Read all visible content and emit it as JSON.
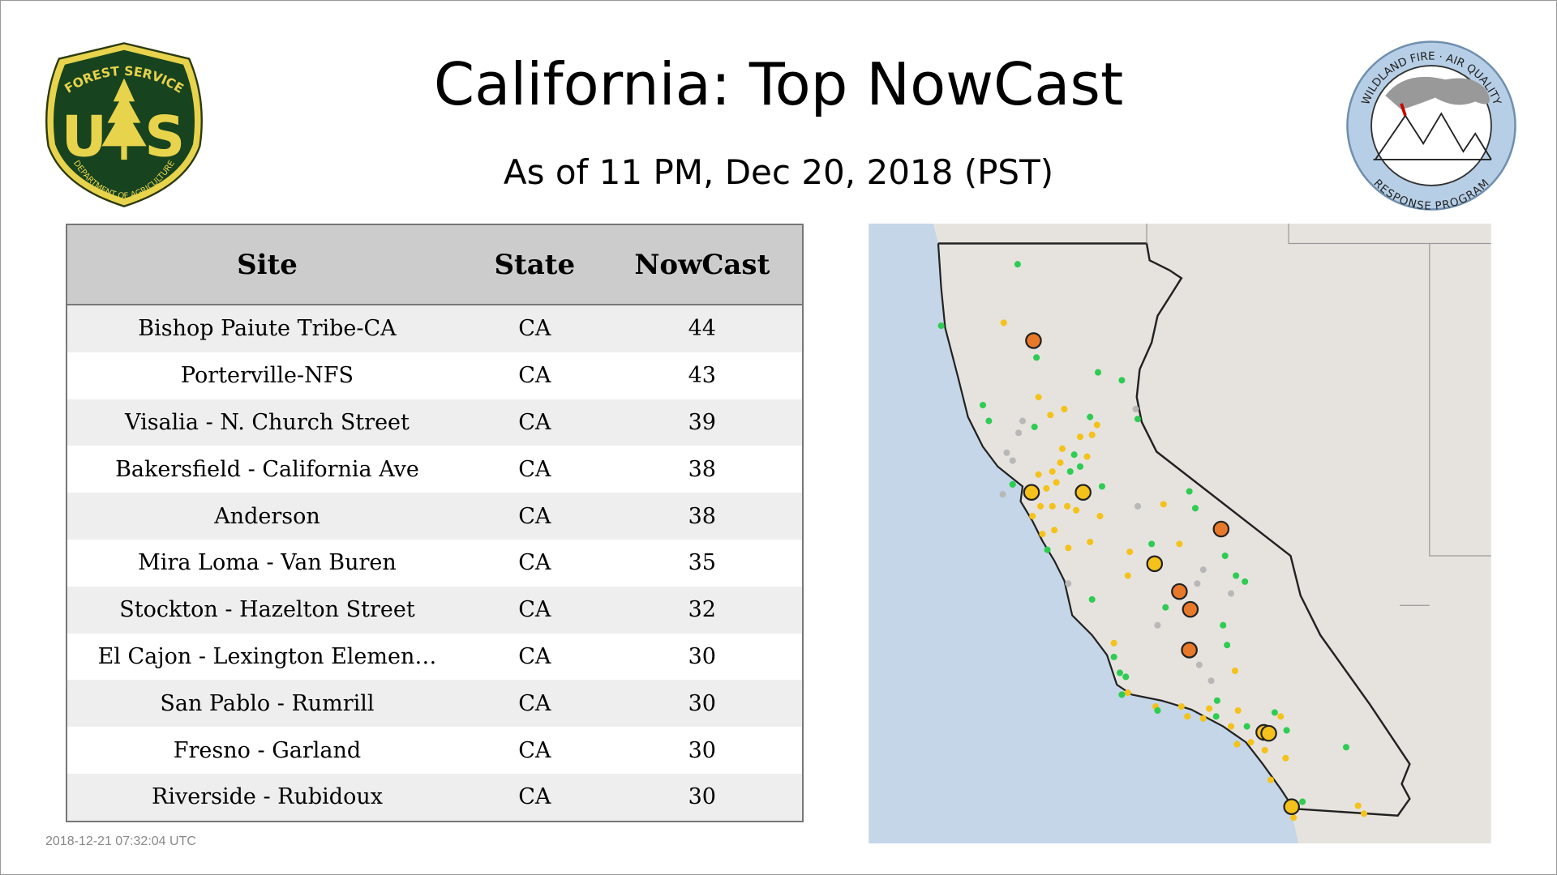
{
  "header": {
    "title": "California: Top NowCast",
    "subtitle": "As of 11 PM, Dec 20, 2018 (PST)"
  },
  "logos": {
    "forest_service": {
      "top": "FOREST SERVICE",
      "letters": [
        "U",
        "S"
      ],
      "bottom": "DEPARTMENT OF AGRICULTURE"
    },
    "wildland_fire": {
      "top": "WILDLAND FIRE · AIR QUALITY",
      "bottom": "RESPONSE PROGRAM"
    }
  },
  "table": {
    "columns": [
      "Site",
      "State",
      "NowCast"
    ],
    "rows": [
      [
        "Bishop Paiute Tribe-CA",
        "CA",
        "44"
      ],
      [
        "Porterville-NFS",
        "CA",
        "43"
      ],
      [
        "Visalia - N. Church Street",
        "CA",
        "39"
      ],
      [
        "Bakersfield - California Ave",
        "CA",
        "38"
      ],
      [
        "Anderson",
        "CA",
        "38"
      ],
      [
        "Mira Loma - Van Buren",
        "CA",
        "35"
      ],
      [
        "Stockton - Hazelton Street",
        "CA",
        "32"
      ],
      [
        "El Cajon - Lexington Elemen…",
        "CA",
        "30"
      ],
      [
        "San Pablo - Rumrill",
        "CA",
        "30"
      ],
      [
        "Fresno - Garland",
        "CA",
        "30"
      ],
      [
        "Riverside - Rubidoux",
        "CA",
        "30"
      ]
    ]
  },
  "footer": {
    "timestamp": "2018-12-21 07:32:04 UTC"
  }
}
